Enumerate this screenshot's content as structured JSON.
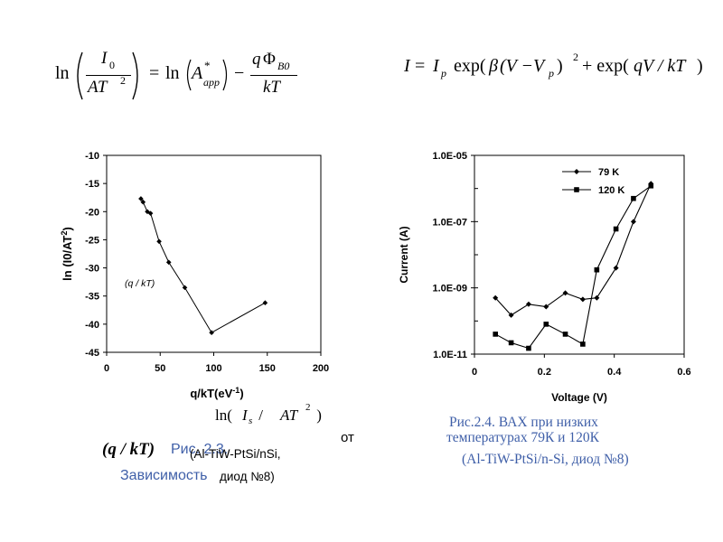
{
  "equations": {
    "left": {
      "ln": "ln",
      "num_I": "I",
      "num_sub": "0",
      "den": "AT",
      "den_sup": "2",
      "eq": "=",
      "ln2": "ln",
      "A": "A",
      "A_sup": "*",
      "A_sub": "app",
      "minus": "−",
      "q": "q",
      "Phi": "Φ",
      "Phi_sub": "B0",
      "kT": "kT"
    },
    "right": {
      "I": "I",
      "eq": "=",
      "Ip": "I",
      "Ip_sub": "p",
      "exp1": "exp(",
      "beta": "β",
      "paren": "(V −V",
      "Vp_sub": "p",
      "close": ")",
      "sup2": "2",
      "plus": "+ exp(",
      "qVkT": "qV / kT",
      "end": ")"
    }
  },
  "chart_data": [
    {
      "type": "line",
      "title": "",
      "xlabel": "q/kT(eV",
      "xlabel_sup": "-1",
      "xlabel_end": ")",
      "ylabel": "ln (I0/AT",
      "ylabel_sup": "2",
      "ylabel_end": ")",
      "xlim": [
        0,
        200
      ],
      "ylim": [
        -45,
        -10
      ],
      "x_ticks": [
        0,
        50,
        100,
        150,
        200
      ],
      "y_ticks": [
        -10,
        -15,
        -20,
        -25,
        -30,
        -35,
        -40,
        -45
      ],
      "grid": false,
      "annotation": "(q / kT)",
      "series": [
        {
          "x": [
            32,
            34,
            38,
            41,
            49,
            58,
            73,
            98,
            148
          ],
          "y": [
            -17.7,
            -18.3,
            -20.0,
            -20.3,
            -25.3,
            -29.0,
            -33.5,
            -41.5,
            -36.2
          ]
        }
      ]
    },
    {
      "type": "line",
      "title": "",
      "xlabel": "Voltage (V)",
      "ylabel": "Current (A)",
      "xlim": [
        0,
        0.6
      ],
      "ylim": [
        "1.0E-11",
        "1.0E-05"
      ],
      "y_scale": "log",
      "x_ticks": [
        "0",
        "0.2",
        "0.4",
        "0.6"
      ],
      "y_ticks": [
        "1.0E-05",
        "1.0E-07",
        "1.0E-09",
        "1.0E-11"
      ],
      "grid": false,
      "legend_placement": "top-left",
      "series": [
        {
          "name": "79 K",
          "marker": "diamond",
          "x": [
            0.06,
            0.105,
            0.155,
            0.205,
            0.26,
            0.31,
            0.35,
            0.405,
            0.455,
            0.505
          ],
          "y": [
            5e-10,
            1.5e-10,
            3.2e-10,
            2.7e-10,
            7e-10,
            4.5e-10,
            5e-10,
            4e-09,
            1e-07,
            1.4e-06
          ]
        },
        {
          "name": "120 K",
          "marker": "square",
          "x": [
            0.06,
            0.105,
            0.155,
            0.205,
            0.26,
            0.31,
            0.35,
            0.405,
            0.455,
            0.505
          ],
          "y": [
            4e-11,
            2.2e-11,
            1.5e-11,
            8e-11,
            4e-11,
            2e-11,
            3.5e-09,
            6e-08,
            5e-07,
            1.2e-06
          ]
        }
      ]
    }
  ],
  "overlay_formula": {
    "ln": "ln(",
    "I": "I",
    "I_sub": "s",
    "slash": " / ",
    "AT": "AT",
    "sup": "2",
    "close": " )"
  },
  "left_caption": {
    "ot": "от",
    "qkt": "(q / kT)",
    "ris": "Рис. 2.3.",
    "material": "(Al-TiW-PtSi/nSi,",
    "zav": "Зависимость",
    "diode": "диод №8)"
  },
  "right_caption": {
    "line1": "Рис.2.4. ВАХ при низких",
    "line2": "температурах 79К и 120К",
    "line3": "(Al-TiW-PtSi/n-Si, диод №8)"
  }
}
